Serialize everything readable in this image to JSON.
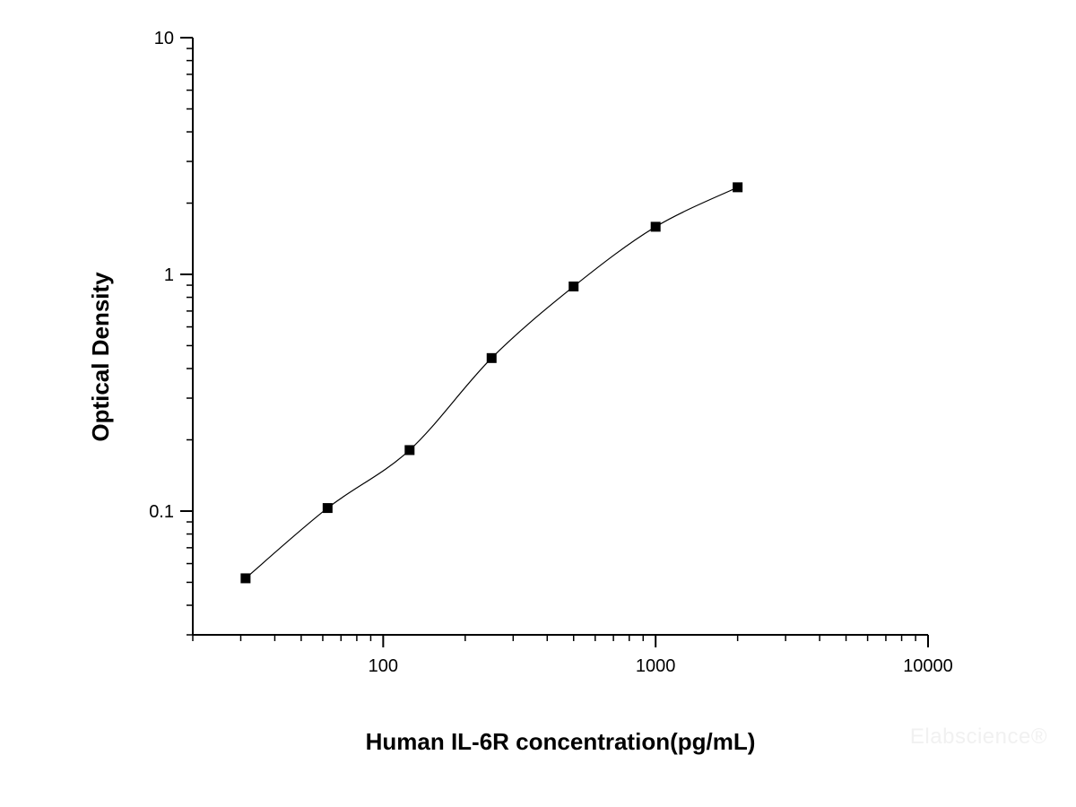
{
  "chart_data": {
    "type": "scatter",
    "title": "",
    "xlabel": "Human IL-6R concentration(pg/mL)",
    "ylabel": "Optical Density",
    "x_scale": "log",
    "y_scale": "log",
    "xlim": [
      20,
      10000
    ],
    "ylim": [
      0.03,
      10
    ],
    "x_ticks": [
      {
        "value": 100,
        "label": "100"
      },
      {
        "value": 1000,
        "label": "1000"
      },
      {
        "value": 10000,
        "label": "10000"
      }
    ],
    "y_ticks": [
      {
        "value": 0.1,
        "label": "0.1"
      },
      {
        "value": 1,
        "label": "1"
      },
      {
        "value": 10,
        "label": "10"
      }
    ],
    "grid": false,
    "series": [
      {
        "x": [
          31.25,
          62.5,
          125,
          250,
          500,
          1000,
          2000
        ],
        "y": [
          0.052,
          0.103,
          0.181,
          0.443,
          0.889,
          1.589,
          2.333
        ],
        "marker": "square",
        "color": "#000000",
        "fit": "smooth curve"
      }
    ]
  },
  "watermark": "Elabscience®"
}
